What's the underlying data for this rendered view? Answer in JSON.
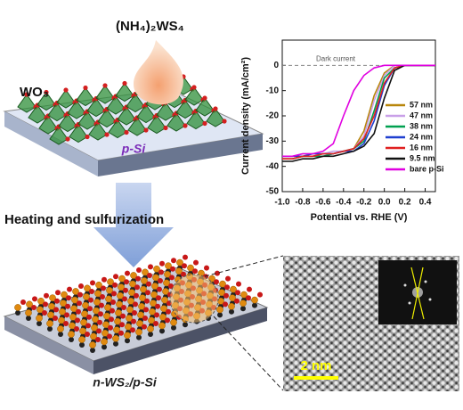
{
  "chart_data": {
    "type": "line",
    "x_label": "Potential vs. RHE (V)",
    "y_label": "Current density (mA/cm²)",
    "x": [
      -1.0,
      -0.9,
      -0.8,
      -0.7,
      -0.6,
      -0.5,
      -0.4,
      -0.3,
      -0.2,
      -0.1,
      0.0,
      0.1,
      0.2,
      0.3,
      0.4,
      0.5
    ],
    "series": [
      {
        "name": "57 nm",
        "color": "#b8860b",
        "values": [
          -37,
          -37,
          -36,
          -36,
          -35,
          -35,
          -34,
          -33,
          -26,
          -12,
          -3,
          0,
          0,
          0,
          0,
          0
        ]
      },
      {
        "name": "47 nm",
        "color": "#c9a0e8",
        "values": [
          -36,
          -36,
          -35,
          -35,
          -35,
          -34,
          -34,
          -33,
          -28,
          -14,
          -4,
          0,
          0,
          0,
          0,
          0
        ]
      },
      {
        "name": "38 nm",
        "color": "#00a050",
        "values": [
          -37,
          -37,
          -36,
          -36,
          -36,
          -35,
          -34,
          -33,
          -30,
          -18,
          -5,
          -1,
          0,
          0,
          0,
          0
        ]
      },
      {
        "name": "24 nm",
        "color": "#1f3fd0",
        "values": [
          -36,
          -36,
          -36,
          -35,
          -35,
          -35,
          -34,
          -34,
          -31,
          -22,
          -8,
          -1,
          0,
          0,
          0,
          0
        ]
      },
      {
        "name": "16 nm",
        "color": "#e02020",
        "values": [
          -37,
          -37,
          -36,
          -36,
          -35,
          -35,
          -34,
          -33,
          -29,
          -20,
          -7,
          -1,
          0,
          0,
          0,
          0
        ]
      },
      {
        "name": "9.5 nm",
        "color": "#111111",
        "values": [
          -38,
          -38,
          -37,
          -37,
          -36,
          -36,
          -35,
          -34,
          -32,
          -27,
          -13,
          -2,
          0,
          0,
          0,
          0
        ]
      },
      {
        "name": "bare p-Si",
        "color": "#e000e0",
        "values": [
          -36,
          -36,
          -35,
          -35,
          -34,
          -31,
          -20,
          -10,
          -4,
          -1,
          0,
          0,
          0,
          0,
          0,
          0
        ]
      }
    ],
    "dark_current": {
      "label": "Dark current",
      "value": 0
    },
    "xlim": [
      -1.0,
      0.5
    ],
    "xticks": [
      {
        "value": -1.0,
        "label": "-1.0"
      },
      -0.8,
      -0.6,
      -0.4,
      -0.2,
      {
        "value": 0.0,
        "label": "0.0"
      },
      0.2,
      0.4
    ],
    "ylim": [
      -50,
      10
    ],
    "yticks": [
      -50,
      -40,
      -30,
      -20,
      -10,
      0
    ],
    "legend": "right"
  },
  "illustration": {
    "precursor": "(NH₄)₂WS₄",
    "oxide": "WO₃",
    "substrate": "p-Si",
    "step": "Heating and sulfurization",
    "product": "n-WS₂/p-Si",
    "scale_bar": "2 nm"
  }
}
